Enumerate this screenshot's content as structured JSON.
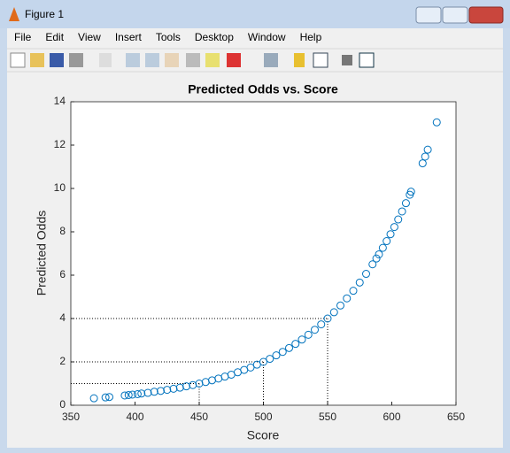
{
  "window": {
    "title": "Figure 1",
    "menu": [
      "File",
      "Edit",
      "View",
      "Insert",
      "Tools",
      "Desktop",
      "Window",
      "Help"
    ]
  },
  "chart_data": {
    "type": "scatter",
    "title": "Predicted Odds vs. Score",
    "x_label": "Score",
    "y_label": "Predicted Odds",
    "color": "#0072bd",
    "x": [
      368,
      377,
      380,
      392,
      395,
      398,
      402,
      405,
      410,
      415,
      420,
      425,
      430,
      435,
      440,
      445,
      450,
      455,
      460,
      465,
      470,
      475,
      480,
      485,
      490,
      495,
      500,
      505,
      510,
      515,
      520,
      525,
      530,
      535,
      540,
      545,
      550,
      555,
      560,
      565,
      570,
      575,
      580,
      585,
      588,
      590,
      593,
      596,
      599,
      602,
      605,
      608,
      611,
      614,
      615,
      624,
      626,
      628,
      635
    ],
    "values": [
      0.32,
      0.36,
      0.38,
      0.45,
      0.47,
      0.49,
      0.51,
      0.54,
      0.57,
      0.62,
      0.66,
      0.71,
      0.76,
      0.81,
      0.87,
      0.93,
      1,
      1.07,
      1.15,
      1.23,
      1.32,
      1.41,
      1.52,
      1.63,
      1.74,
      1.87,
      2,
      2.14,
      2.3,
      2.46,
      2.64,
      2.83,
      3.03,
      3.25,
      3.48,
      3.73,
      4,
      4.29,
      4.6,
      4.93,
      5.28,
      5.66,
      6.06,
      6.5,
      6.77,
      6.96,
      7.26,
      7.57,
      7.89,
      8.22,
      8.57,
      8.94,
      9.32,
      9.71,
      9.85,
      11.16,
      11.47,
      11.79,
      13.05
    ],
    "reference_points": {
      "x": [
        450,
        500,
        550
      ],
      "y": [
        1,
        2,
        4
      ]
    },
    "xlim": [
      350,
      650
    ],
    "xticks": [
      350,
      400,
      450,
      500,
      550,
      600,
      650
    ],
    "ylim": [
      0,
      14
    ],
    "yticks": [
      0,
      2,
      4,
      6,
      8,
      10,
      12,
      14
    ],
    "grid": false
  }
}
